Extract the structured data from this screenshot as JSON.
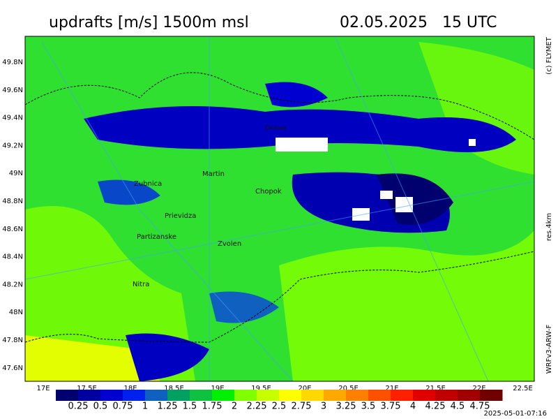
{
  "header": {
    "title": "updrafts [m/s] 1500m msl",
    "datetime": "02.05.2025   15 UTC"
  },
  "side_labels": {
    "copyright": "(c) FLYMET",
    "resolution": "res.4km",
    "model": "WRFv3-ARW-F"
  },
  "timestamp": "2025-05-01-07:16",
  "lat_labels": [
    "49.8N",
    "49.6N",
    "49.4N",
    "49.2N",
    "49N",
    "48.8N",
    "48.6N",
    "48.4N",
    "48.2N",
    "48N",
    "47.8N",
    "47.6N"
  ],
  "lon_labels": [
    "17E",
    "17.5E",
    "18E",
    "18.5E",
    "19E",
    "19.5E",
    "20E",
    "20.5E",
    "21E",
    "21.5E",
    "22E",
    "22.5E"
  ],
  "places": [
    "Orava",
    "Martin",
    "Zubnica",
    "Chopok",
    "Prievidza",
    "Partizanske",
    "Zvolen",
    "Nitra"
  ],
  "colorbar": {
    "labels": [
      0.25,
      0.5,
      0.75,
      1,
      1.25,
      1.5,
      1.75,
      2,
      2.25,
      2.5,
      2.75,
      3,
      3.25,
      3.5,
      3.75,
      4,
      4.25,
      4.5,
      4.75
    ],
    "colors": [
      "#00006e",
      "#0000a0",
      "#0000d0",
      "#0020f0",
      "#1060c0",
      "#00a060",
      "#10c040",
      "#00f000",
      "#80ff00",
      "#c8ff00",
      "#ffff00",
      "#ffd800",
      "#ffa800",
      "#ff8000",
      "#ff5000",
      "#ff2000",
      "#e00000",
      "#c00000",
      "#a00000",
      "#700000"
    ]
  }
}
